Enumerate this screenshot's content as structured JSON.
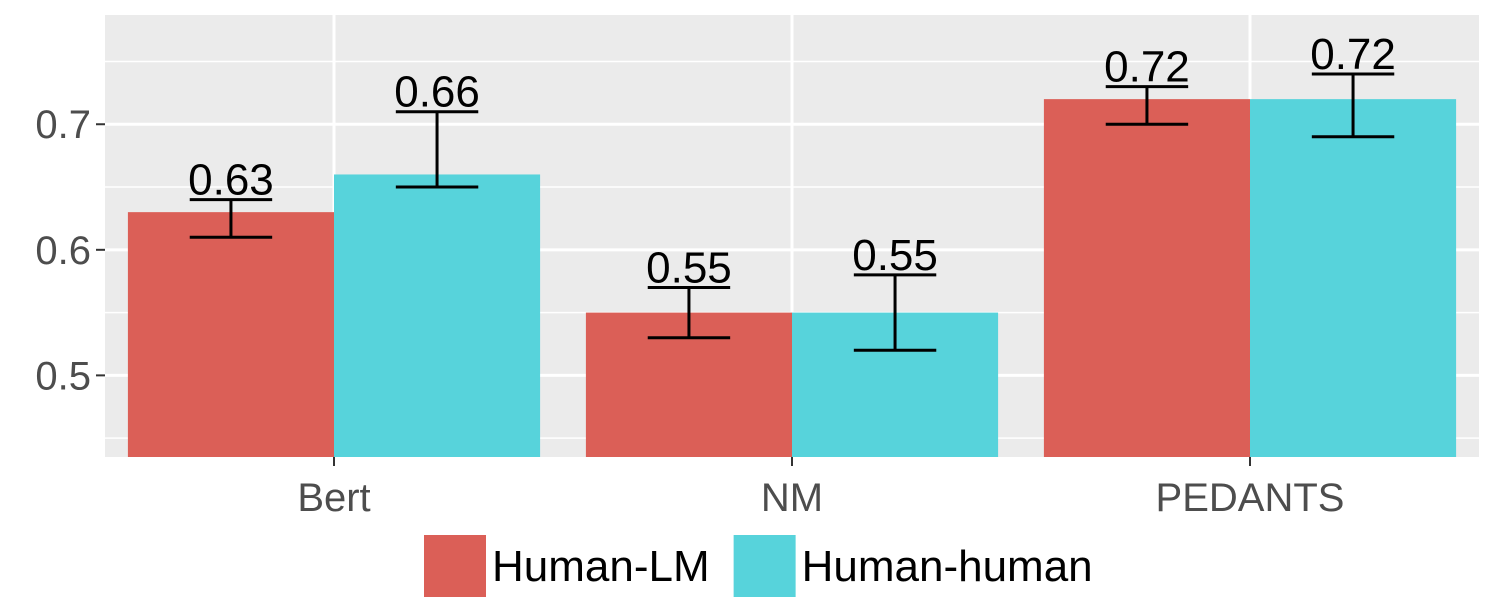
{
  "chart_data": {
    "type": "bar",
    "title": "",
    "xlabel": "",
    "ylabel": "",
    "categories": [
      "Bert",
      "NM",
      "PEDANTS"
    ],
    "ylim": [
      0.435,
      0.787
    ],
    "yticks": [
      0.5,
      0.6,
      0.7
    ],
    "ytick_labels": [
      "0.5",
      "0.6",
      "0.7"
    ],
    "grid": true,
    "legend_position": "bottom",
    "series": [
      {
        "name": "Human-LM",
        "color": "#db5f57",
        "values": [
          0.63,
          0.55,
          0.72
        ],
        "labels": [
          "0.63",
          "0.55",
          "0.72"
        ],
        "error_low": [
          0.61,
          0.53,
          0.7
        ],
        "error_high": [
          0.64,
          0.57,
          0.73
        ]
      },
      {
        "name": "Human-human",
        "color": "#57d3db",
        "values": [
          0.66,
          0.55,
          0.72
        ],
        "labels": [
          "0.66",
          "0.55",
          "0.72"
        ],
        "error_low": [
          0.65,
          0.52,
          0.69
        ],
        "error_high": [
          0.71,
          0.58,
          0.74
        ]
      }
    ]
  }
}
